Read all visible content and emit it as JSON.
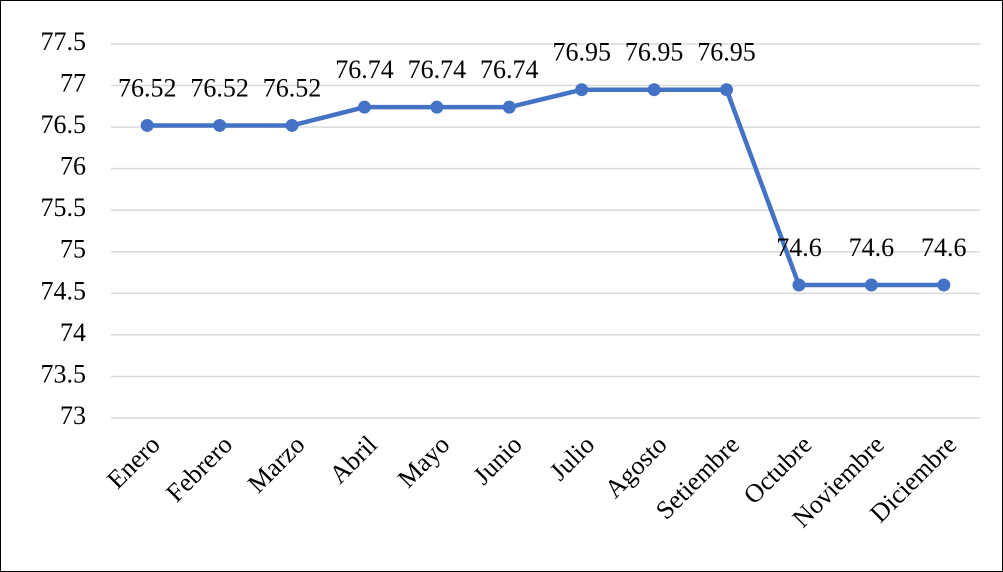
{
  "chart_data": {
    "type": "line",
    "categories": [
      "Enero",
      "Febrero",
      "Marzo",
      "Abril",
      "Mayo",
      "Junio",
      "Julio",
      "Agosto",
      "Setiembre",
      "Octubre",
      "Noviembre",
      "Diciembre"
    ],
    "values": [
      76.52,
      76.52,
      76.52,
      76.74,
      76.74,
      76.74,
      76.95,
      76.95,
      76.95,
      74.6,
      74.6,
      74.6
    ],
    "color": "#4472c4",
    "ylim": [
      73,
      77.5
    ],
    "yticks": [
      73,
      73.5,
      74,
      74.5,
      75,
      75.5,
      76,
      76.5,
      77,
      77.5
    ],
    "grid": true
  }
}
